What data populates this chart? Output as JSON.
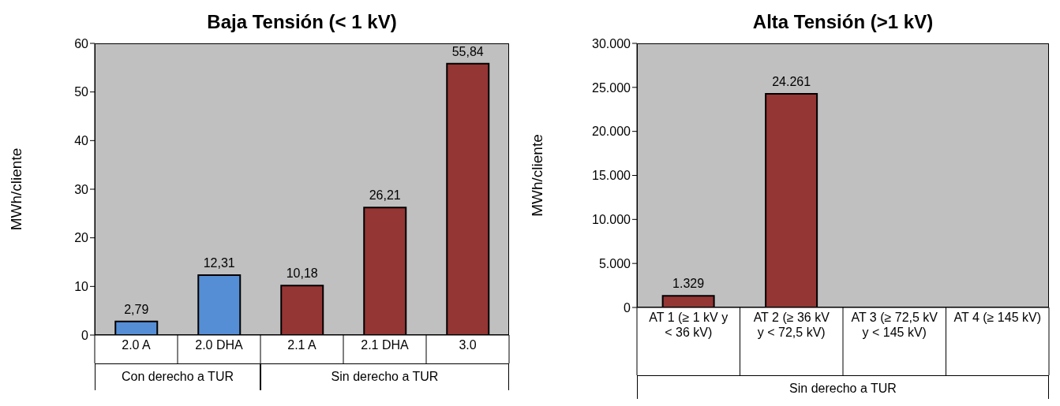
{
  "chart_data": [
    {
      "type": "bar",
      "title": "Baja Tensión  (< 1 kV)",
      "ylabel": "MWh/cliente",
      "categories": [
        "2.0 A",
        "2.0 DHA",
        "2.1 A",
        "2.1 DHA",
        "3.0"
      ],
      "values": [
        2.79,
        12.31,
        10.18,
        26.21,
        55.84
      ],
      "colors": [
        "#558ed5",
        "#558ed5",
        "#943634",
        "#943634",
        "#943634"
      ],
      "value_labels": [
        "2,79",
        "12,31",
        "10,18",
        "26,21",
        "55,84"
      ],
      "ylim": [
        0,
        60
      ],
      "yticks": [
        0,
        10,
        20,
        30,
        40,
        50,
        60
      ],
      "annotations": [
        "Con derecho a TUR",
        "Sin derecho a TUR"
      ]
    },
    {
      "type": "bar",
      "title": "Alta Tensión  (>1 kV)",
      "ylabel": "MWh/cliente",
      "categories": [
        "AT 1 (≥  1 kV y  < 36 kV)",
        "AT 2 (≥  36 kV y < 72,5 kV)",
        "AT 3 (≥ 72,5 kV y < 145 kV)",
        "AT 4 (≥ 145 kV)"
      ],
      "values": [
        1329,
        24261,
        null,
        null
      ],
      "colors": [
        "#943634",
        "#943634",
        "#943634",
        "#943634"
      ],
      "value_labels": [
        "1.329",
        "24.261",
        null,
        null
      ],
      "ylim": [
        0,
        30000
      ],
      "yticks": [
        0,
        {
          "value": 5000,
          "label": "5.000"
        },
        {
          "value": 10000,
          "label": "10.000"
        },
        {
          "value": 15000,
          "label": "15.000"
        },
        {
          "value": 20000,
          "label": "20.000"
        },
        {
          "value": 25000,
          "label": "25.000"
        },
        {
          "value": 30000,
          "label": "30.000"
        }
      ],
      "annotations": [
        "Sin derecho a TUR"
      ]
    }
  ]
}
